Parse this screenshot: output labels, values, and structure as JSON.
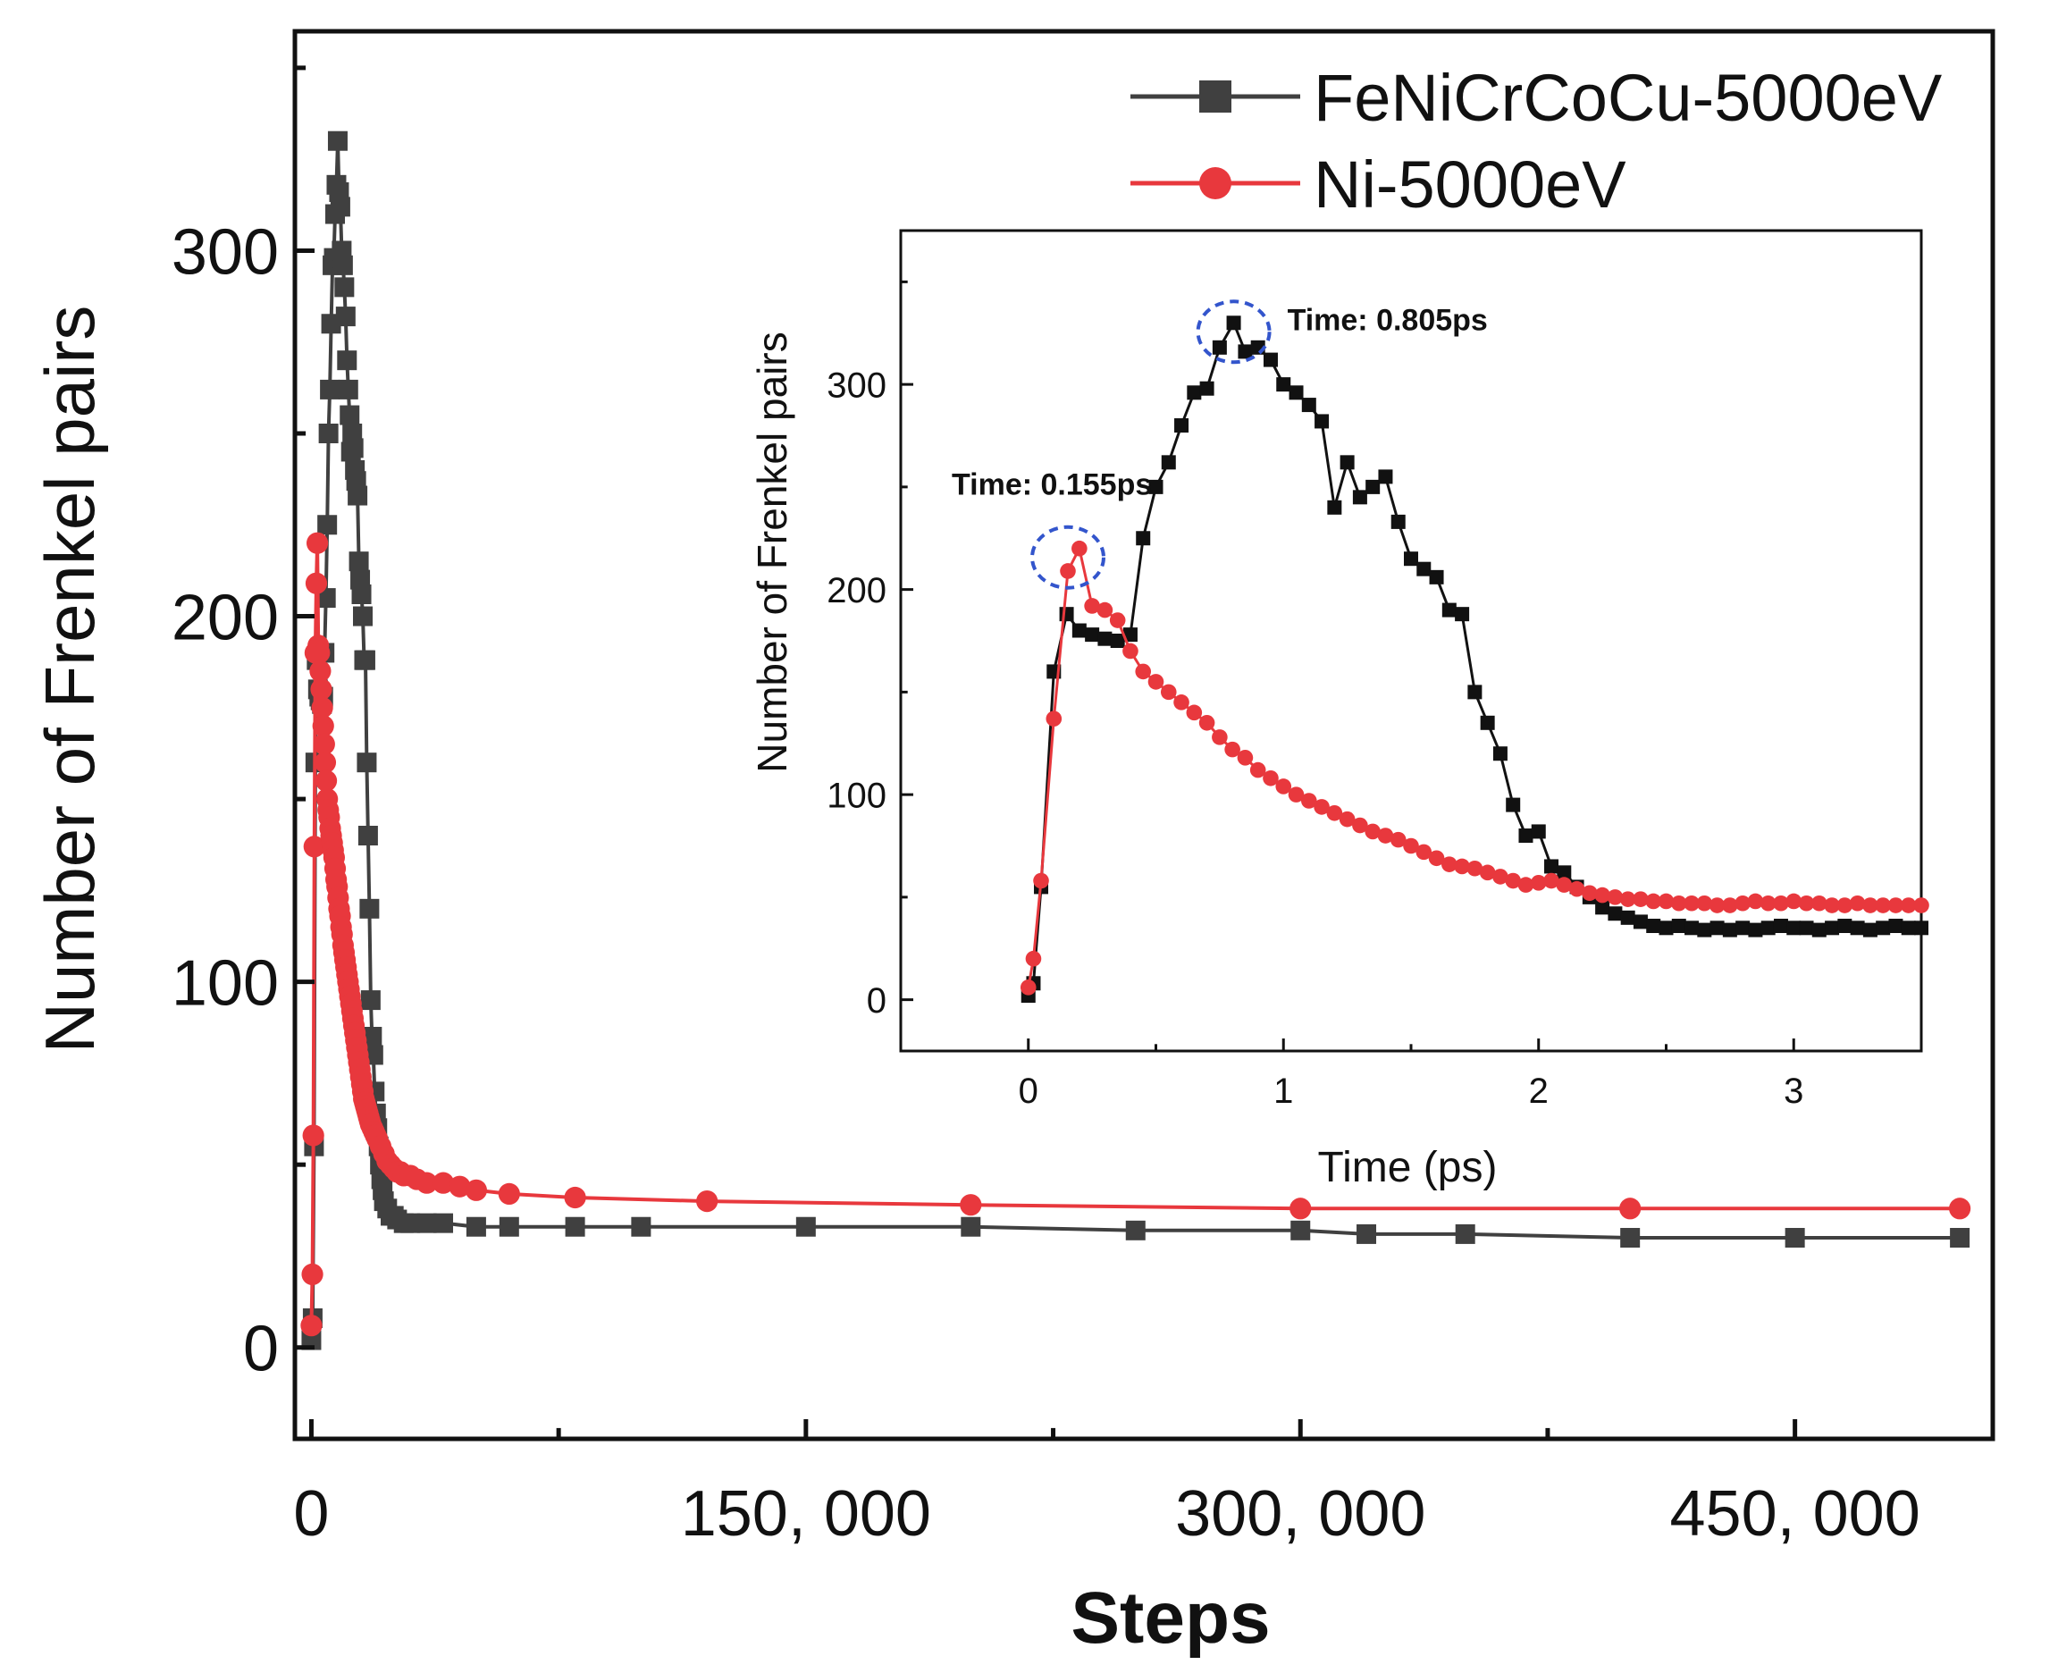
{
  "chart_data": [
    {
      "id": "main",
      "type": "line",
      "title": "",
      "xlabel": "Steps",
      "ylabel": "Number of Frenkel pairs",
      "xlim": [
        -5000,
        510000
      ],
      "ylim": [
        -25,
        360
      ],
      "x_ticks": [
        0,
        150000,
        300000,
        450000
      ],
      "x_tick_labels": [
        "0",
        "150, 000",
        "300, 000",
        "450, 000"
      ],
      "y_ticks": [
        0,
        100,
        200,
        300
      ],
      "y_tick_labels": [
        "0",
        "100",
        "200",
        "300"
      ],
      "legend": {
        "position": "top-right",
        "entries": [
          {
            "label": "FeNiCrCoCu-5000eV",
            "marker": "square",
            "color": "#404040"
          },
          {
            "label": "Ni-5000eV",
            "marker": "circle",
            "color": "#e8383d"
          }
        ]
      },
      "series": [
        {
          "name": "FeNiCrCoCu-5000eV",
          "color": "#404040",
          "marker": "square",
          "x": [
            0,
            400,
            800,
            1200,
            1600,
            2000,
            2400,
            2800,
            3200,
            3600,
            4000,
            4400,
            4800,
            5200,
            5600,
            6000,
            6400,
            6800,
            7200,
            7600,
            8000,
            8400,
            8800,
            9200,
            9600,
            10000,
            10400,
            10800,
            11200,
            11600,
            12000,
            12400,
            12800,
            13200,
            13600,
            14000,
            14400,
            14800,
            15200,
            15600,
            16000,
            16400,
            16800,
            17200,
            17600,
            18000,
            18400,
            18800,
            19200,
            19600,
            20000,
            20400,
            20800,
            21200,
            21600,
            22000,
            23000,
            24000,
            25000,
            26000,
            28000,
            30000,
            35000,
            40000,
            50000,
            60000,
            80000,
            100000,
            150000,
            200000,
            250000,
            300000,
            320000,
            350000,
            400000,
            450000,
            500000
          ],
          "y": [
            2,
            8,
            55,
            160,
            188,
            180,
            178,
            177,
            176,
            178,
            190,
            205,
            225,
            250,
            262,
            280,
            296,
            298,
            310,
            318,
            330,
            316,
            312,
            300,
            296,
            290,
            282,
            270,
            262,
            255,
            245,
            250,
            246,
            240,
            237,
            233,
            215,
            210,
            206,
            200,
            188,
            188,
            160,
            140,
            120,
            95,
            85,
            80,
            70,
            64,
            60,
            55,
            50,
            46,
            43,
            40,
            38,
            36,
            36,
            35,
            34,
            34,
            34,
            34,
            33,
            33,
            33,
            33,
            33,
            33,
            32,
            32,
            31,
            31,
            30,
            30,
            30
          ]
        },
        {
          "name": "Ni-5000eV",
          "color": "#e8383d",
          "marker": "circle",
          "x": [
            0,
            300,
            600,
            900,
            1200,
            1500,
            1800,
            2100,
            2400,
            2700,
            3000,
            3300,
            3600,
            3900,
            4200,
            4500,
            4800,
            5100,
            5400,
            5700,
            6000,
            6300,
            6600,
            6900,
            7200,
            7500,
            7800,
            8100,
            8400,
            8700,
            9000,
            9300,
            9600,
            9900,
            10200,
            10500,
            10800,
            11100,
            11400,
            11700,
            12000,
            12300,
            12600,
            12900,
            13200,
            13500,
            13800,
            14100,
            14400,
            14700,
            15000,
            15300,
            15600,
            15900,
            16200,
            16500,
            16800,
            17100,
            17400,
            17700,
            18000,
            18500,
            19000,
            19500,
            20000,
            21000,
            22000,
            23000,
            24000,
            25000,
            26000,
            27000,
            28000,
            30000,
            32000,
            35000,
            40000,
            45000,
            50000,
            60000,
            80000,
            120000,
            200000,
            300000,
            400000,
            500000
          ],
          "y": [
            6,
            20,
            58,
            137,
            190,
            209,
            220,
            192,
            190,
            185,
            180,
            175,
            170,
            165,
            160,
            155,
            150,
            147,
            145,
            142,
            140,
            138,
            136,
            134,
            131,
            128,
            126,
            123,
            120,
            118,
            115,
            113,
            110,
            108,
            106,
            104,
            102,
            100,
            98,
            96,
            94,
            92,
            90,
            88,
            86,
            84,
            82,
            80,
            78,
            76,
            74,
            72,
            70,
            68,
            67,
            66,
            65,
            64,
            63,
            62,
            61,
            60,
            59,
            58,
            57,
            55,
            53,
            51,
            50,
            49,
            48,
            48,
            47,
            47,
            46,
            45,
            45,
            44,
            43,
            42,
            41,
            40,
            39,
            38,
            38,
            38
          ]
        }
      ]
    },
    {
      "id": "inset",
      "type": "line",
      "title": "",
      "xlabel": "Time (ps)",
      "ylabel": "Number of Frenkel pairs",
      "xlim": [
        -0.5,
        3.5
      ],
      "ylim": [
        -25,
        375
      ],
      "x_ticks": [
        0,
        1,
        2,
        3
      ],
      "x_tick_labels": [
        "0",
        "1",
        "2",
        "3"
      ],
      "y_ticks": [
        0,
        100,
        200,
        300
      ],
      "y_tick_labels": [
        "0",
        "100",
        "200",
        "300"
      ],
      "annotations": [
        {
          "text": "Time: 0.805ps",
          "x": 0.805,
          "y": 330,
          "color": "#111111",
          "circle_color": "#3355cc"
        },
        {
          "text": "Time: 0.155ps",
          "x": 0.155,
          "y": 220,
          "color": "#d62728",
          "circle_color": "#3355cc"
        }
      ],
      "series": [
        {
          "name": "FeNiCrCoCu-5000eV",
          "color": "#111111",
          "marker": "square",
          "x": [
            0,
            0.02,
            0.05,
            0.1,
            0.15,
            0.2,
            0.25,
            0.3,
            0.35,
            0.4,
            0.45,
            0.5,
            0.55,
            0.6,
            0.65,
            0.7,
            0.75,
            0.805,
            0.85,
            0.9,
            0.95,
            1.0,
            1.05,
            1.1,
            1.15,
            1.2,
            1.25,
            1.3,
            1.35,
            1.4,
            1.45,
            1.5,
            1.55,
            1.6,
            1.65,
            1.7,
            1.75,
            1.8,
            1.85,
            1.9,
            1.95,
            2.0,
            2.05,
            2.1,
            2.15,
            2.2,
            2.25,
            2.3,
            2.35,
            2.4,
            2.45,
            2.5,
            2.55,
            2.6,
            2.65,
            2.7,
            2.75,
            2.8,
            2.85,
            2.9,
            2.95,
            3.0,
            3.05,
            3.1,
            3.15,
            3.2,
            3.25,
            3.3,
            3.35,
            3.4,
            3.45,
            3.5
          ],
          "y": [
            2,
            8,
            55,
            160,
            188,
            180,
            178,
            176,
            175,
            178,
            225,
            250,
            262,
            280,
            296,
            298,
            318,
            330,
            316,
            318,
            312,
            300,
            296,
            290,
            282,
            240,
            262,
            245,
            250,
            255,
            233,
            215,
            210,
            206,
            190,
            188,
            150,
            135,
            120,
            95,
            80,
            82,
            65,
            62,
            55,
            50,
            45,
            42,
            40,
            38,
            36,
            35,
            36,
            35,
            34,
            35,
            34,
            35,
            34,
            35,
            36,
            35,
            35,
            34,
            35,
            36,
            35,
            34,
            35,
            36,
            35,
            35
          ]
        },
        {
          "name": "Ni-5000eV",
          "color": "#e8383d",
          "marker": "circle",
          "x": [
            0,
            0.02,
            0.05,
            0.1,
            0.155,
            0.2,
            0.25,
            0.3,
            0.35,
            0.4,
            0.45,
            0.5,
            0.55,
            0.6,
            0.65,
            0.7,
            0.75,
            0.8,
            0.85,
            0.9,
            0.95,
            1.0,
            1.05,
            1.1,
            1.15,
            1.2,
            1.25,
            1.3,
            1.35,
            1.4,
            1.45,
            1.5,
            1.55,
            1.6,
            1.65,
            1.7,
            1.75,
            1.8,
            1.85,
            1.9,
            1.95,
            2.0,
            2.05,
            2.1,
            2.15,
            2.2,
            2.25,
            2.3,
            2.35,
            2.4,
            2.45,
            2.5,
            2.55,
            2.6,
            2.65,
            2.7,
            2.75,
            2.8,
            2.85,
            2.9,
            2.95,
            3.0,
            3.05,
            3.1,
            3.15,
            3.2,
            3.25,
            3.3,
            3.35,
            3.4,
            3.45,
            3.5
          ],
          "y": [
            6,
            20,
            58,
            137,
            209,
            220,
            192,
            190,
            185,
            170,
            160,
            155,
            150,
            145,
            140,
            135,
            128,
            122,
            118,
            112,
            108,
            104,
            100,
            97,
            94,
            91,
            88,
            85,
            82,
            80,
            78,
            75,
            72,
            69,
            66,
            65,
            64,
            62,
            60,
            58,
            56,
            57,
            58,
            56,
            54,
            52,
            51,
            50,
            49,
            49,
            48,
            48,
            47,
            47,
            47,
            46,
            46,
            47,
            48,
            47,
            47,
            48,
            47,
            47,
            46,
            46,
            47,
            46,
            46,
            46,
            46,
            46
          ]
        }
      ]
    }
  ]
}
